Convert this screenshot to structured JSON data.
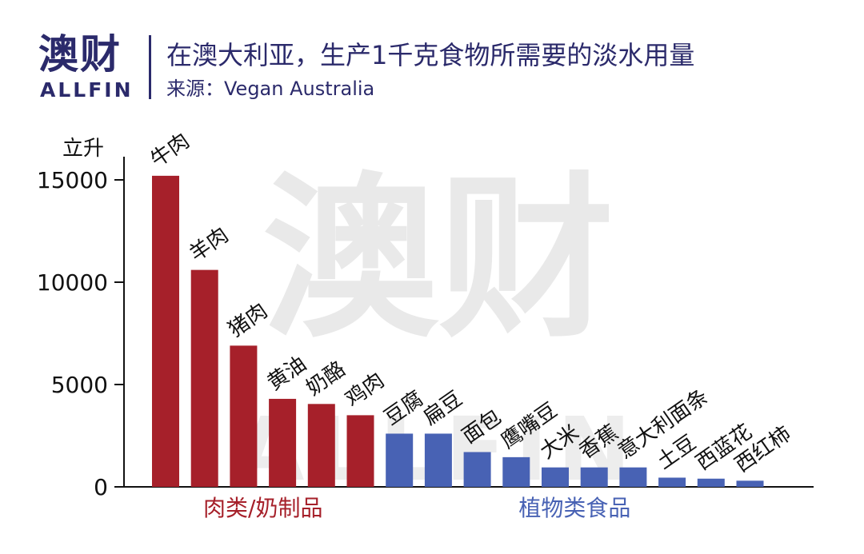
{
  "header": {
    "logo_cn": "澳财",
    "logo_en": "ALLFIN",
    "title": "在澳大利亚，生产1千克食物所需要的淡水用量",
    "source": "来源：Vegan Australia"
  },
  "watermark": {
    "cn": "澳财",
    "en": "ALLFIN"
  },
  "colors": {
    "meat_dairy": "#a6202a",
    "plant": "#4862b4",
    "brand": "#2b2a6b",
    "axis": "#111111",
    "watermark": "#e9e9e9"
  },
  "chart_data": {
    "type": "bar",
    "title": "在澳大利亚，生产1千克食物所需要的淡水用量",
    "ylabel": "立升",
    "ylim": [
      0,
      16000
    ],
    "yticks": [
      0,
      5000,
      10000,
      15000
    ],
    "categories": [
      "牛肉",
      "羊肉",
      "猪肉",
      "黄油",
      "奶酪",
      "鸡肉",
      "豆腐",
      "扁豆",
      "面包",
      "鹰嘴豆",
      "大米",
      "香蕉",
      "意大利面条",
      "土豆",
      "西蓝花",
      "西红柿"
    ],
    "values": [
      15200,
      10600,
      6900,
      4300,
      4050,
      3500,
      2600,
      2600,
      1700,
      1450,
      950,
      950,
      950,
      450,
      400,
      300
    ],
    "groups": [
      {
        "name": "肉类/奶制品",
        "start": 0,
        "end": 5,
        "color": "#a6202a"
      },
      {
        "name": "植物类食品",
        "start": 6,
        "end": 15,
        "color": "#4862b4"
      }
    ],
    "grid": false
  }
}
